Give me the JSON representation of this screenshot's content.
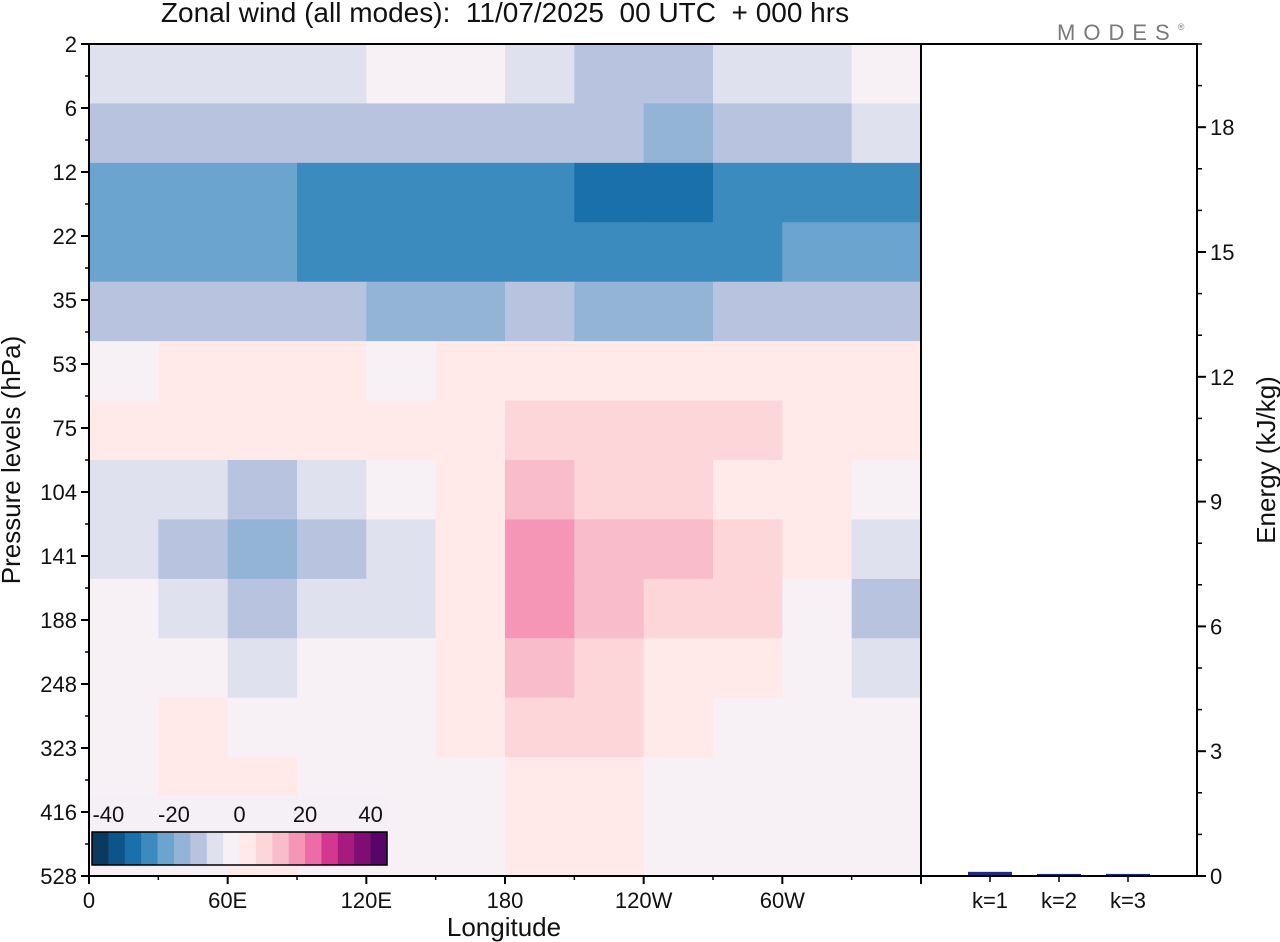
{
  "title": "Zonal wind (all modes):  11/07/2025  00 UTC  + 000 hrs",
  "logo": {
    "text": "MODES",
    "mark": "®"
  },
  "chart_data": [
    {
      "type": "heatmap",
      "xlabel": "Longitude",
      "ylabel": "Pressure levels (hPa)",
      "x_ticks": [
        "0",
        "60E",
        "120E",
        "180",
        "120W",
        "60W"
      ],
      "y_ticks": [
        "2",
        "6",
        "12",
        "22",
        "35",
        "53",
        "75",
        "104",
        "141",
        "188",
        "248",
        "323",
        "416",
        "528"
      ],
      "y_scale": "pressure levels, top = 2 hPa, bottom = 528 hPa",
      "colorbar": {
        "tick_labels": [
          "-40",
          "-20",
          "0",
          "20",
          "40"
        ],
        "range": [
          -45,
          45
        ],
        "step": 5,
        "colors": [
          "#0b3a5e",
          "#0c5489",
          "#1a70aa",
          "#3b8bbf",
          "#6aa4cf",
          "#93b4d6",
          "#b8c3df",
          "#dfe1ef",
          "#f7f0f5",
          "#ffe9e9",
          "#fcd6d9",
          "#f9bccb",
          "#f596b6",
          "#ec6ba8",
          "#d4378f",
          "#a91a7e",
          "#7e0e73",
          "#560667"
        ]
      },
      "levels": [
        "2",
        "6",
        "12",
        "22",
        "35",
        "53",
        "75",
        "104",
        "141",
        "188",
        "248",
        "323",
        "416",
        "528"
      ],
      "longitudes": [
        0,
        30,
        60,
        90,
        120,
        150,
        180,
        210,
        240,
        270,
        300,
        330
      ],
      "grid": "off",
      "values": [
        [
          -10,
          -10,
          -10,
          -10,
          -5,
          -5,
          -10,
          -15,
          -15,
          -10,
          -10,
          -5
        ],
        [
          -15,
          -15,
          -15,
          -15,
          -15,
          -15,
          -15,
          -15,
          -20,
          -15,
          -15,
          -10
        ],
        [
          -25,
          -25,
          -25,
          -30,
          -30,
          -30,
          -30,
          -35,
          -35,
          -30,
          -30,
          -30
        ],
        [
          -25,
          -25,
          -25,
          -30,
          -30,
          -30,
          -30,
          -30,
          -30,
          -30,
          -25,
          -25
        ],
        [
          -15,
          -15,
          -15,
          -15,
          -20,
          -20,
          -15,
          -20,
          -20,
          -15,
          -15,
          -15
        ],
        [
          -5,
          0,
          0,
          0,
          -5,
          0,
          0,
          0,
          0,
          0,
          0,
          0
        ],
        [
          0,
          0,
          0,
          0,
          0,
          0,
          5,
          5,
          5,
          5,
          0,
          0
        ],
        [
          -10,
          -10,
          -15,
          -10,
          -5,
          0,
          10,
          5,
          5,
          0,
          0,
          -5
        ],
        [
          -10,
          -15,
          -20,
          -15,
          -10,
          0,
          15,
          10,
          10,
          5,
          0,
          -10
        ],
        [
          -5,
          -10,
          -15,
          -10,
          -10,
          0,
          15,
          10,
          5,
          5,
          -5,
          -15
        ],
        [
          -5,
          -5,
          -10,
          -5,
          -5,
          0,
          10,
          5,
          0,
          0,
          -5,
          -10
        ],
        [
          -5,
          0,
          -5,
          -5,
          -5,
          0,
          5,
          5,
          0,
          -5,
          -5,
          -5
        ],
        [
          -5,
          0,
          0,
          -5,
          -5,
          -5,
          0,
          0,
          -5,
          -5,
          -5,
          -5
        ],
        [
          -5,
          -5,
          0,
          -5,
          -5,
          -5,
          0,
          0,
          -5,
          -5,
          -5,
          -5
        ]
      ]
    },
    {
      "type": "bar",
      "categories": [
        "k=1",
        "k=2",
        "k=3"
      ],
      "values": [
        0.1,
        0.05,
        0.05
      ],
      "ylabel": "Energy (kJ/kg)",
      "ylim": [
        0,
        20
      ],
      "y_ticks": [
        "0",
        "3",
        "6",
        "9",
        "12",
        "15",
        "18"
      ],
      "bar_color": "#1f2a80"
    }
  ]
}
